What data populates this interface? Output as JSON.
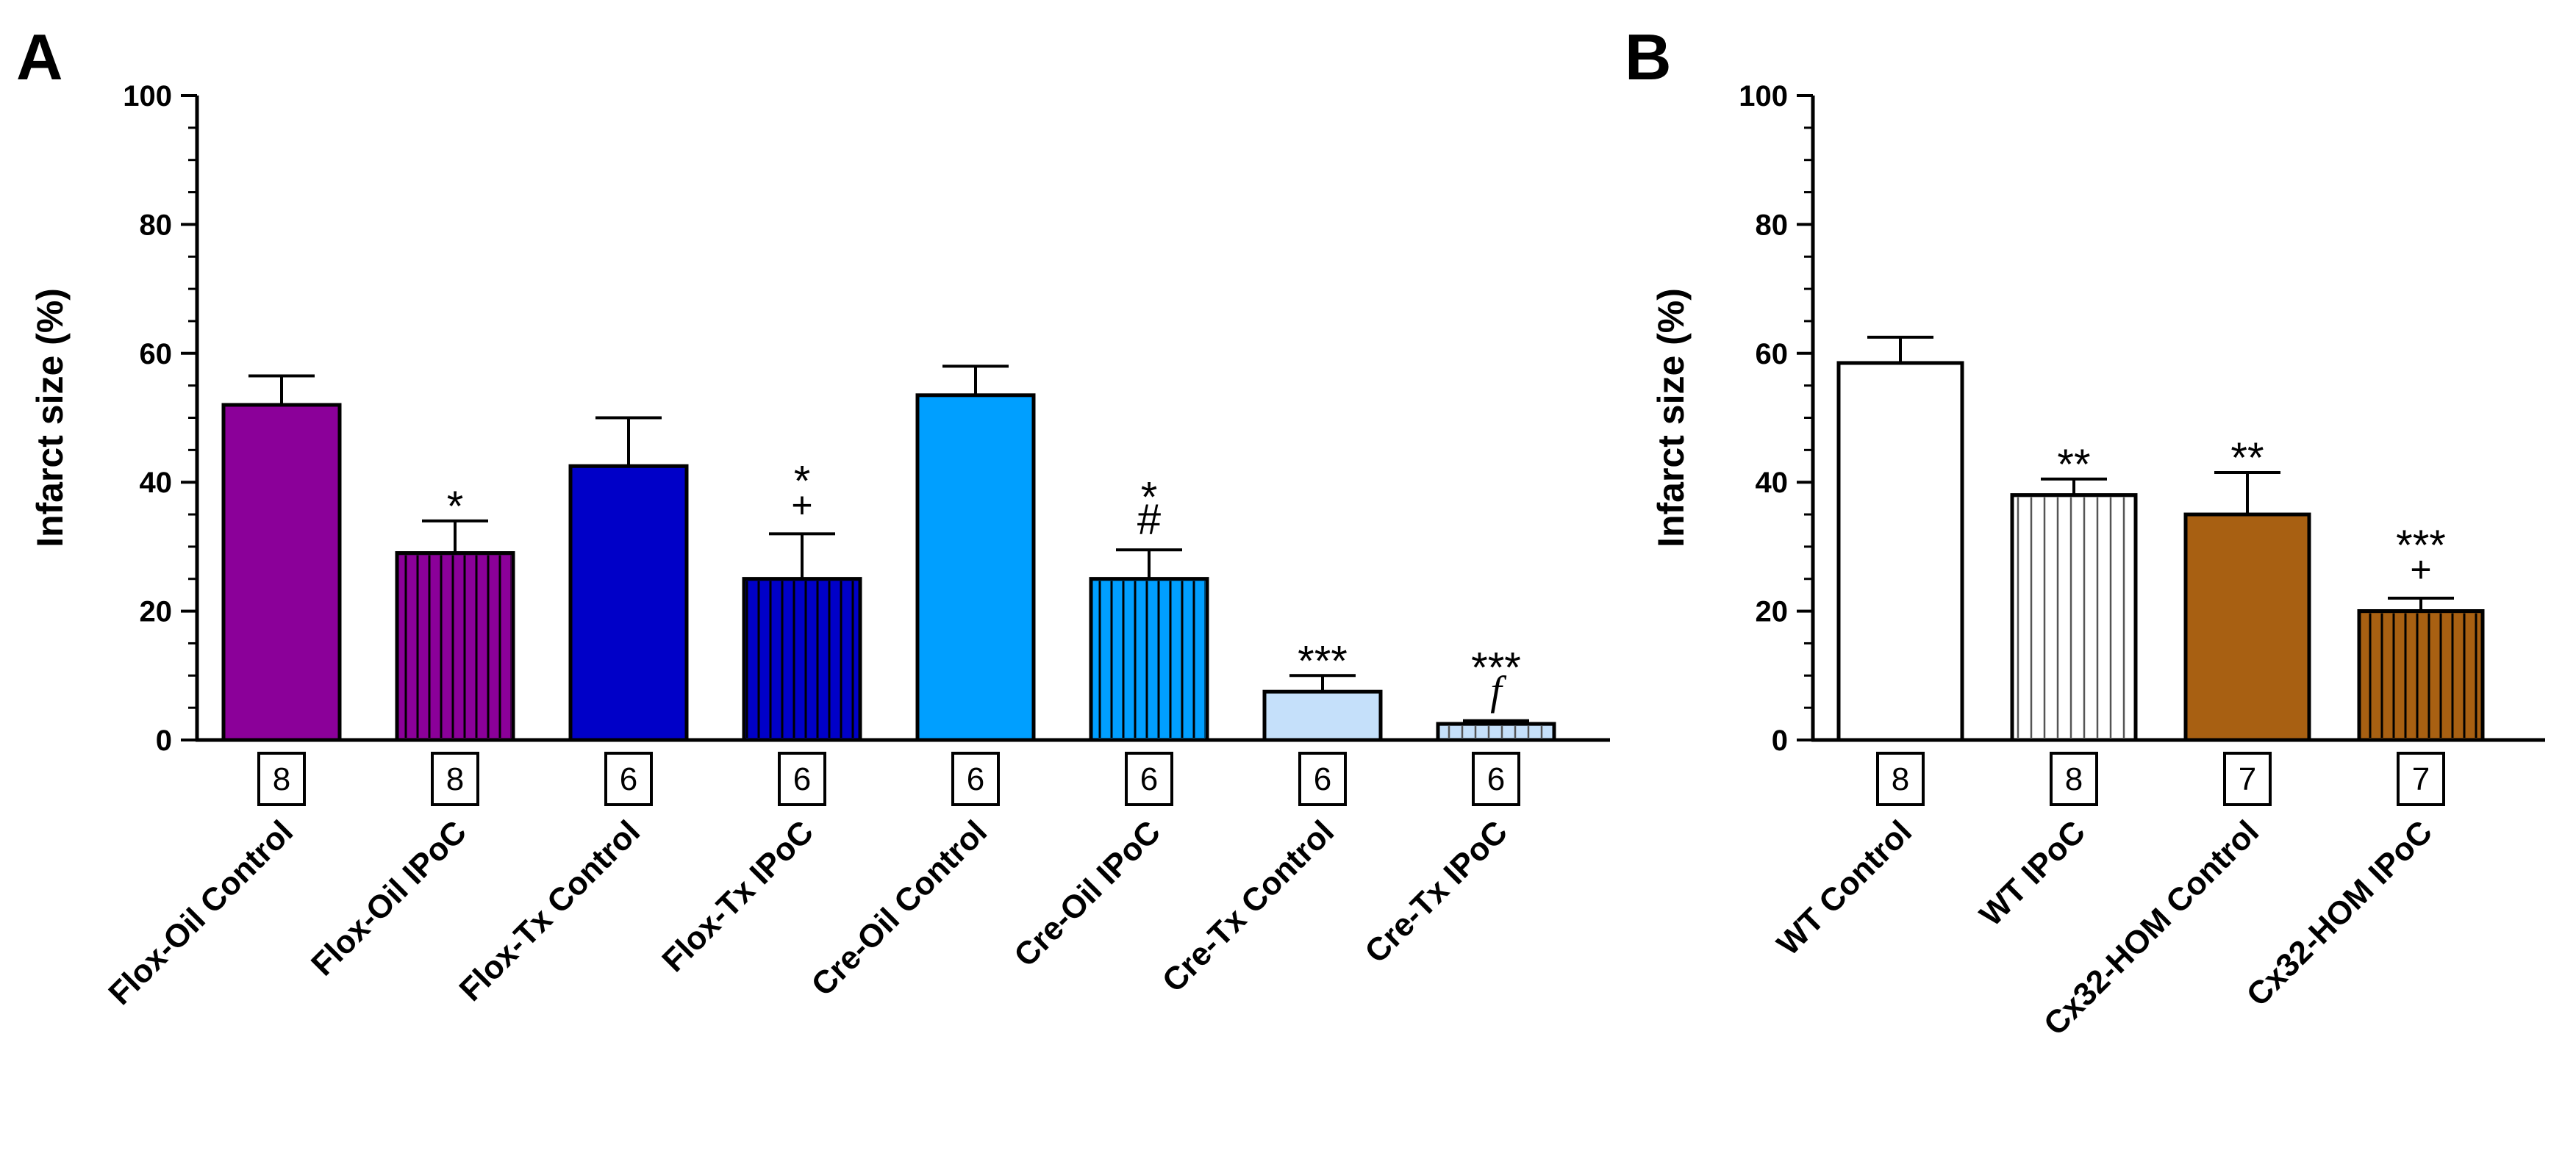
{
  "chart_data": [
    {
      "panel": "A",
      "type": "bar",
      "ylabel": "Infarct size (%)",
      "xlabel": "",
      "ylim": [
        0,
        100
      ],
      "yticks": [
        0,
        20,
        40,
        60,
        80,
        100
      ],
      "categories": [
        "Flox-Oil Control",
        "Flox-Oil IPoC",
        "Flox-Tx Control",
        "Flox-Tx IPoC",
        "Cre-Oil Control",
        "Cre-Oil IPoC",
        "Cre-Tx Control",
        "Cre-Tx IPoC"
      ],
      "values": [
        52,
        29,
        42.5,
        25,
        53.5,
        25,
        7.5,
        2.5
      ],
      "errors": [
        4.5,
        5,
        7.5,
        7,
        4.5,
        4.5,
        2.5,
        0.5
      ],
      "n": [
        "8",
        "8",
        "6",
        "6",
        "6",
        "6",
        "6",
        "6"
      ],
      "annotations": [
        [],
        [
          "*"
        ],
        [],
        [
          "*",
          "+"
        ],
        [],
        [
          "*",
          "#"
        ],
        [
          "***"
        ],
        [
          "***",
          "f"
        ]
      ],
      "fill_colors": [
        "#8B0099",
        "#8B0099",
        "#0000C8",
        "#0000C8",
        "#009FFF",
        "#009FFF",
        "#C5E0FA",
        "#C5E0FA"
      ],
      "hatched": [
        false,
        true,
        false,
        true,
        false,
        true,
        false,
        true
      ]
    },
    {
      "panel": "B",
      "type": "bar",
      "ylabel": "Infarct size (%)",
      "xlabel": "",
      "ylim": [
        0,
        100
      ],
      "yticks": [
        0,
        20,
        40,
        60,
        80,
        100
      ],
      "categories": [
        "WT Control",
        "WT IPoC",
        "Cx32-HOM Control",
        "Cx32-HOM IPoC"
      ],
      "values": [
        58.5,
        38,
        35,
        20
      ],
      "errors": [
        4,
        2.5,
        6.5,
        2
      ],
      "n": [
        "8",
        "8",
        "7",
        "7"
      ],
      "annotations": [
        [],
        [
          "**"
        ],
        [
          "**"
        ],
        [
          "***",
          "+"
        ]
      ],
      "fill_colors": [
        "#FFFFFF",
        "#FFFFFF",
        "#A86012",
        "#A86012"
      ],
      "hatched": [
        false,
        true,
        false,
        true
      ]
    }
  ]
}
